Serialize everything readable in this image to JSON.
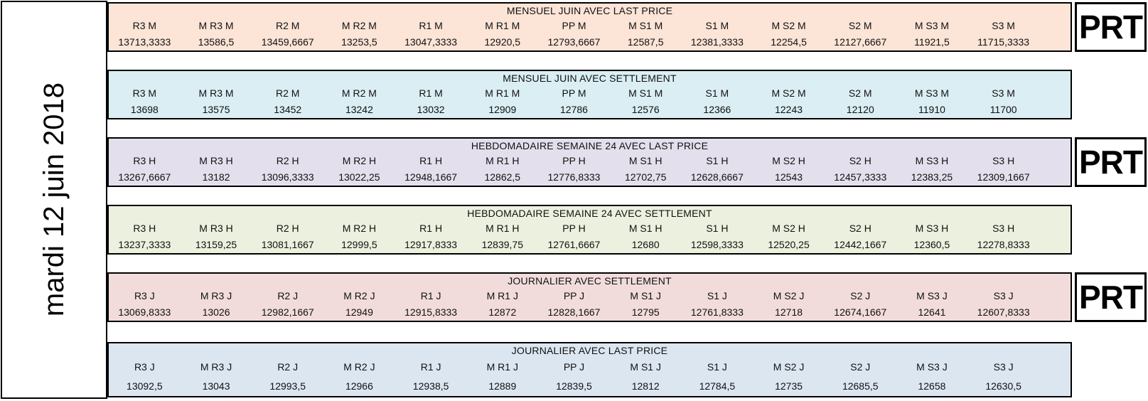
{
  "date_label": "mardi 12 juin 2018",
  "prt_label": "PRT",
  "bands": [
    {
      "title": "MENSUEL JUIN AVEC LAST PRICE",
      "color": "#FCE4D6",
      "prt": true,
      "headers": [
        "R3 M",
        "M R3 M",
        "R2 M",
        "M R2 M",
        "R1 M",
        "M R1 M",
        "PP M",
        "M S1 M",
        "S1 M",
        "M S2 M",
        "S2 M",
        "M S3 M",
        "S3 M"
      ],
      "values": [
        "13713,3333",
        "13586,5",
        "13459,6667",
        "13253,5",
        "13047,3333",
        "12920,5",
        "12793,6667",
        "12587,5",
        "12381,3333",
        "12254,5",
        "12127,6667",
        "11921,5",
        "11715,3333"
      ]
    },
    {
      "title": "MENSUEL JUIN AVEC SETTLEMENT",
      "color": "#DAEEF3",
      "prt": false,
      "headers": [
        "R3 M",
        "M R3 M",
        "R2 M",
        "M R2 M",
        "R1 M",
        "M R1 M",
        "PP M",
        "M S1 M",
        "S1 M",
        "M S2 M",
        "S2 M",
        "M S3 M",
        "S3 M"
      ],
      "values": [
        "13698",
        "13575",
        "13452",
        "13242",
        "13032",
        "12909",
        "12786",
        "12576",
        "12366",
        "12243",
        "12120",
        "11910",
        "11700"
      ]
    },
    {
      "title": "HEBDOMADAIRE SEMAINE 24 AVEC LAST PRICE",
      "color": "#E4DFEC",
      "prt": true,
      "headers": [
        "R3 H",
        "M R3 H",
        "R2 H",
        "M R2 H",
        "R1 H",
        "M R1 H",
        "PP H",
        "M S1 H",
        "S1 H",
        "M S2 H",
        "S2 H",
        "M S3 H",
        "S3 H"
      ],
      "values": [
        "13267,6667",
        "13182",
        "13096,3333",
        "13022,25",
        "12948,1667",
        "12862,5",
        "12776,8333",
        "12702,75",
        "12628,6667",
        "12543",
        "12457,3333",
        "12383,25",
        "12309,1667"
      ]
    },
    {
      "title": "HEBDOMADAIRE SEMAINE 24 AVEC SETTLEMENT",
      "color": "#EBF1DE",
      "prt": false,
      "headers": [
        "R3 H",
        "M R3 H",
        "R2 H",
        "M R2 H",
        "R1 H",
        "M R1 H",
        "PP H",
        "M S1 H",
        "S1 H",
        "M S2 H",
        "S2 H",
        "M S3 H",
        "S3 H"
      ],
      "values": [
        "13237,3333",
        "13159,25",
        "13081,1667",
        "12999,5",
        "12917,8333",
        "12839,75",
        "12761,6667",
        "12680",
        "12598,3333",
        "12520,25",
        "12442,1667",
        "12360,5",
        "12278,8333"
      ]
    },
    {
      "title": "JOURNALIER AVEC SETTLEMENT",
      "color": "#F2DCDB",
      "prt": true,
      "headers": [
        "R3 J",
        "M R3 J",
        "R2 J",
        "M R2 J",
        "R1 J",
        "M R1 J",
        "PP J",
        "M S1 J",
        "S1 J",
        "M S2 J",
        "S2 J",
        "M S3 J",
        "S3 J"
      ],
      "values": [
        "13069,8333",
        "13026",
        "12982,1667",
        "12949",
        "12915,8333",
        "12872",
        "12828,1667",
        "12795",
        "12761,8333",
        "12718",
        "12674,1667",
        "12641",
        "12607,8333"
      ]
    },
    {
      "title": "JOURNALIER AVEC LAST PRICE",
      "color": "#DCE6F1",
      "prt": false,
      "headers": [
        "R3 J",
        "M R3 J",
        "R2 J",
        "M R2 J",
        "R1 J",
        "M R1 J",
        "PP J",
        "M S1 J",
        "S1 J",
        "M S2 J",
        "S2 J",
        "M S3 J",
        "S3 J"
      ],
      "values": [
        "13092,5",
        "13043",
        "12993,5",
        "12966",
        "12938,5",
        "12889",
        "12839,5",
        "12812",
        "12784,5",
        "12735",
        "12685,5",
        "12658",
        "12630,5"
      ]
    }
  ]
}
